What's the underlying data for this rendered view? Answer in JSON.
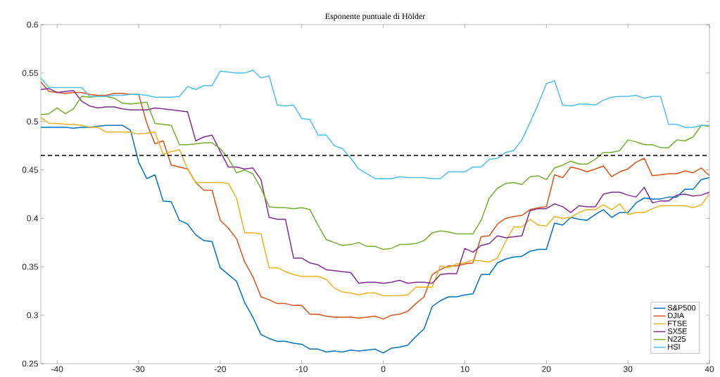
{
  "chart_data": {
    "type": "line",
    "title": "Esponente puntuale di Hölder",
    "x": [
      -42,
      -41,
      -40,
      -39,
      -38,
      -37,
      -36,
      -35,
      -34,
      -33,
      -32,
      -31,
      -30,
      -29,
      -28,
      -27,
      -26,
      -25,
      -24,
      -23,
      -22,
      -21,
      -20,
      -19,
      -18,
      -17,
      -16,
      -15,
      -14,
      -13,
      -12,
      -11,
      -10,
      -9,
      -8,
      -7,
      -6,
      -5,
      -4,
      -3,
      -2,
      -1,
      0,
      1,
      2,
      3,
      4,
      5,
      6,
      7,
      8,
      9,
      10,
      11,
      12,
      13,
      14,
      15,
      16,
      17,
      18,
      19,
      20,
      21,
      22,
      23,
      24,
      25,
      26,
      27,
      28,
      29,
      30,
      31,
      32,
      33,
      34,
      35,
      36,
      37,
      38,
      39,
      40
    ],
    "series": [
      {
        "name": "S&P500",
        "color": "#0072bd",
        "values": [
          0.494,
          0.494,
          0.494,
          0.494,
          0.493,
          0.494,
          0.494,
          0.495,
          0.496,
          0.496,
          0.496,
          0.491,
          0.458,
          0.441,
          0.445,
          0.418,
          0.417,
          0.398,
          0.394,
          0.383,
          0.377,
          0.376,
          0.349,
          0.342,
          0.335,
          0.313,
          0.298,
          0.28,
          0.276,
          0.273,
          0.273,
          0.271,
          0.27,
          0.265,
          0.265,
          0.262,
          0.263,
          0.262,
          0.264,
          0.263,
          0.264,
          0.265,
          0.261,
          0.266,
          0.267,
          0.269,
          0.278,
          0.286,
          0.309,
          0.315,
          0.319,
          0.319,
          0.321,
          0.322,
          0.342,
          0.342,
          0.354,
          0.358,
          0.36,
          0.361,
          0.366,
          0.368,
          0.368,
          0.395,
          0.393,
          0.401,
          0.399,
          0.398,
          0.404,
          0.409,
          0.401,
          0.406,
          0.406,
          0.416,
          0.421,
          0.42,
          0.42,
          0.422,
          0.422,
          0.43,
          0.43,
          0.44,
          0.442
        ]
      },
      {
        "name": "DJIA",
        "color": "#d95319",
        "values": [
          0.541,
          0.531,
          0.53,
          0.529,
          0.53,
          0.53,
          0.528,
          0.527,
          0.527,
          0.529,
          0.529,
          0.528,
          0.528,
          0.498,
          0.477,
          0.48,
          0.455,
          0.453,
          0.451,
          0.437,
          0.429,
          0.429,
          0.398,
          0.39,
          0.379,
          0.355,
          0.34,
          0.319,
          0.316,
          0.312,
          0.312,
          0.31,
          0.31,
          0.301,
          0.301,
          0.299,
          0.298,
          0.298,
          0.298,
          0.297,
          0.298,
          0.299,
          0.296,
          0.3,
          0.301,
          0.304,
          0.312,
          0.319,
          0.342,
          0.347,
          0.351,
          0.351,
          0.353,
          0.354,
          0.381,
          0.382,
          0.394,
          0.4,
          0.402,
          0.403,
          0.409,
          0.411,
          0.412,
          0.445,
          0.442,
          0.453,
          0.451,
          0.448,
          0.451,
          0.454,
          0.443,
          0.448,
          0.451,
          0.458,
          0.462,
          0.444,
          0.445,
          0.446,
          0.446,
          0.449,
          0.447,
          0.452,
          0.444
        ]
      },
      {
        "name": "FTSE",
        "color": "#edb120",
        "values": [
          0.504,
          0.498,
          0.498,
          0.497,
          0.497,
          0.496,
          0.494,
          0.494,
          0.489,
          0.489,
          0.489,
          0.489,
          0.487,
          0.488,
          0.489,
          0.466,
          0.469,
          0.471,
          0.451,
          0.437,
          0.437,
          0.437,
          0.437,
          0.436,
          0.421,
          0.385,
          0.385,
          0.384,
          0.349,
          0.349,
          0.345,
          0.342,
          0.34,
          0.34,
          0.34,
          0.337,
          0.328,
          0.324,
          0.323,
          0.321,
          0.323,
          0.323,
          0.32,
          0.32,
          0.32,
          0.321,
          0.329,
          0.329,
          0.329,
          0.351,
          0.349,
          0.353,
          0.354,
          0.357,
          0.356,
          0.355,
          0.359,
          0.376,
          0.391,
          0.391,
          0.399,
          0.393,
          0.392,
          0.402,
          0.4,
          0.401,
          0.406,
          0.409,
          0.409,
          0.414,
          0.409,
          0.415,
          0.404,
          0.406,
          0.406,
          0.41,
          0.413,
          0.413,
          0.413,
          0.413,
          0.411,
          0.414,
          0.425
        ]
      },
      {
        "name": "SX5E",
        "color": "#7e2f8e",
        "values": [
          0.533,
          0.534,
          0.53,
          0.531,
          0.532,
          0.521,
          0.516,
          0.514,
          0.515,
          0.515,
          0.513,
          0.512,
          0.512,
          0.512,
          0.514,
          0.513,
          0.512,
          0.511,
          0.51,
          0.48,
          0.484,
          0.486,
          0.469,
          0.453,
          0.453,
          0.451,
          0.452,
          0.44,
          0.401,
          0.399,
          0.399,
          0.359,
          0.359,
          0.354,
          0.352,
          0.347,
          0.346,
          0.345,
          0.344,
          0.333,
          0.334,
          0.334,
          0.333,
          0.334,
          0.336,
          0.333,
          0.334,
          0.334,
          0.333,
          0.342,
          0.343,
          0.343,
          0.369,
          0.365,
          0.372,
          0.374,
          0.382,
          0.38,
          0.381,
          0.382,
          0.408,
          0.41,
          0.41,
          0.415,
          0.412,
          0.406,
          0.413,
          0.412,
          0.412,
          0.425,
          0.427,
          0.427,
          0.424,
          0.422,
          0.432,
          0.416,
          0.418,
          0.418,
          0.424,
          0.425,
          0.423,
          0.424,
          0.427
        ]
      },
      {
        "name": "N225",
        "color": "#77ac30",
        "values": [
          0.507,
          0.508,
          0.514,
          0.508,
          0.513,
          0.526,
          0.525,
          0.526,
          0.526,
          0.524,
          0.519,
          0.518,
          0.519,
          0.52,
          0.498,
          0.497,
          0.496,
          0.476,
          0.476,
          0.477,
          0.478,
          0.478,
          0.472,
          0.462,
          0.447,
          0.45,
          0.446,
          0.431,
          0.412,
          0.411,
          0.411,
          0.41,
          0.411,
          0.409,
          0.393,
          0.378,
          0.375,
          0.372,
          0.373,
          0.375,
          0.371,
          0.371,
          0.368,
          0.369,
          0.373,
          0.373,
          0.374,
          0.377,
          0.385,
          0.387,
          0.386,
          0.384,
          0.384,
          0.384,
          0.398,
          0.421,
          0.431,
          0.436,
          0.437,
          0.435,
          0.443,
          0.444,
          0.44,
          0.452,
          0.455,
          0.459,
          0.456,
          0.456,
          0.461,
          0.468,
          0.468,
          0.47,
          0.481,
          0.479,
          0.476,
          0.476,
          0.473,
          0.473,
          0.481,
          0.48,
          0.484,
          0.496,
          0.495
        ]
      },
      {
        "name": "HSI",
        "color": "#4dbeee",
        "values": [
          0.545,
          0.535,
          0.535,
          0.535,
          0.535,
          0.535,
          0.526,
          0.526,
          0.526,
          0.527,
          0.527,
          0.528,
          0.528,
          0.527,
          0.525,
          0.525,
          0.525,
          0.526,
          0.536,
          0.533,
          0.537,
          0.537,
          0.552,
          0.551,
          0.55,
          0.55,
          0.553,
          0.545,
          0.547,
          0.517,
          0.516,
          0.517,
          0.503,
          0.502,
          0.486,
          0.486,
          0.475,
          0.472,
          0.462,
          0.451,
          0.446,
          0.441,
          0.441,
          0.441,
          0.443,
          0.442,
          0.442,
          0.442,
          0.441,
          0.441,
          0.448,
          0.448,
          0.448,
          0.453,
          0.453,
          0.461,
          0.462,
          0.468,
          0.47,
          0.481,
          0.499,
          0.518,
          0.539,
          0.542,
          0.517,
          0.516,
          0.518,
          0.518,
          0.517,
          0.522,
          0.525,
          0.526,
          0.526,
          0.527,
          0.524,
          0.526,
          0.526,
          0.497,
          0.497,
          0.494,
          0.494,
          0.496,
          0.496
        ]
      }
    ],
    "xlim": [
      -42,
      40
    ],
    "ylim": [
      0.25,
      0.6
    ],
    "xticks": [
      -40,
      -30,
      -20,
      -10,
      0,
      10,
      20,
      30,
      40
    ],
    "yticks": [
      0.25,
      0.3,
      0.35,
      0.4,
      0.45,
      0.5,
      0.55,
      0.6
    ],
    "ref_lines": [
      {
        "axis": "y",
        "value": 0.465,
        "color": "#000000",
        "line_style": "dashed"
      }
    ],
    "legend": "bottom right",
    "grid": false,
    "marker": "none",
    "line_style": "solid"
  }
}
